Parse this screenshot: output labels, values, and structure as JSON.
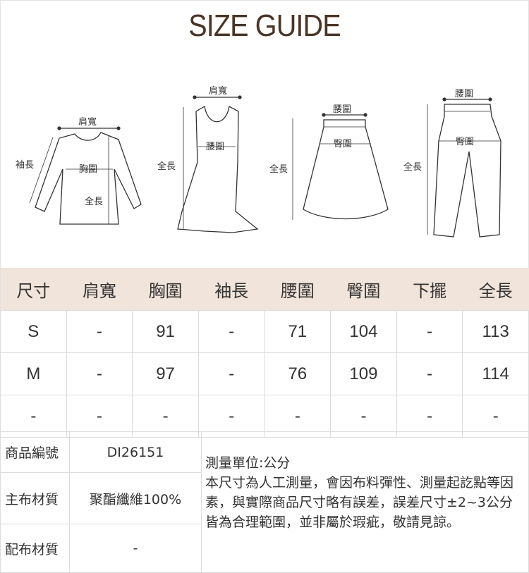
{
  "title": "SIZE GUIDE",
  "diagrams": {
    "top": {
      "shoulder": "肩寬",
      "sleeve": "袖長",
      "chest": "胸圍",
      "length": "全長"
    },
    "dress": {
      "shoulder": "肩寬",
      "waist": "腰圍",
      "length": "全長"
    },
    "skirt": {
      "waist": "腰圍",
      "hip": "臀圍",
      "length": "全長"
    },
    "pants": {
      "waist": "腰圍",
      "hip": "臀圍",
      "length": "全長"
    }
  },
  "size_table": {
    "headers": [
      "尺寸",
      "肩寬",
      "胸圍",
      "袖長",
      "腰圍",
      "臀圍",
      "下擺",
      "全長"
    ],
    "rows": [
      [
        "S",
        "-",
        "91",
        "-",
        "71",
        "104",
        "-",
        "113"
      ],
      [
        "M",
        "-",
        "97",
        "-",
        "76",
        "109",
        "-",
        "114"
      ],
      [
        "-",
        "-",
        "-",
        "-",
        "-",
        "-",
        "-",
        "-"
      ]
    ]
  },
  "info": {
    "product_code_label": "商品編號",
    "product_code": "DI26151",
    "main_material_label": "主布材質",
    "main_material": "聚酯纖維100%",
    "lining_label": "配布材質",
    "lining": "-",
    "unit_note": "測量單位:公分",
    "disclaimer": "本尺寸為人工測量，會因布料彈性、測量起訖點等因素，與實際商品尺寸略有誤差，誤差尺寸±2~3公分皆為合理範圍，並非屬於瑕疵，敬請見諒。"
  },
  "colors": {
    "title": "#4a3526",
    "header_bg": "#f1e4da",
    "grid": "#dcdcdc"
  }
}
